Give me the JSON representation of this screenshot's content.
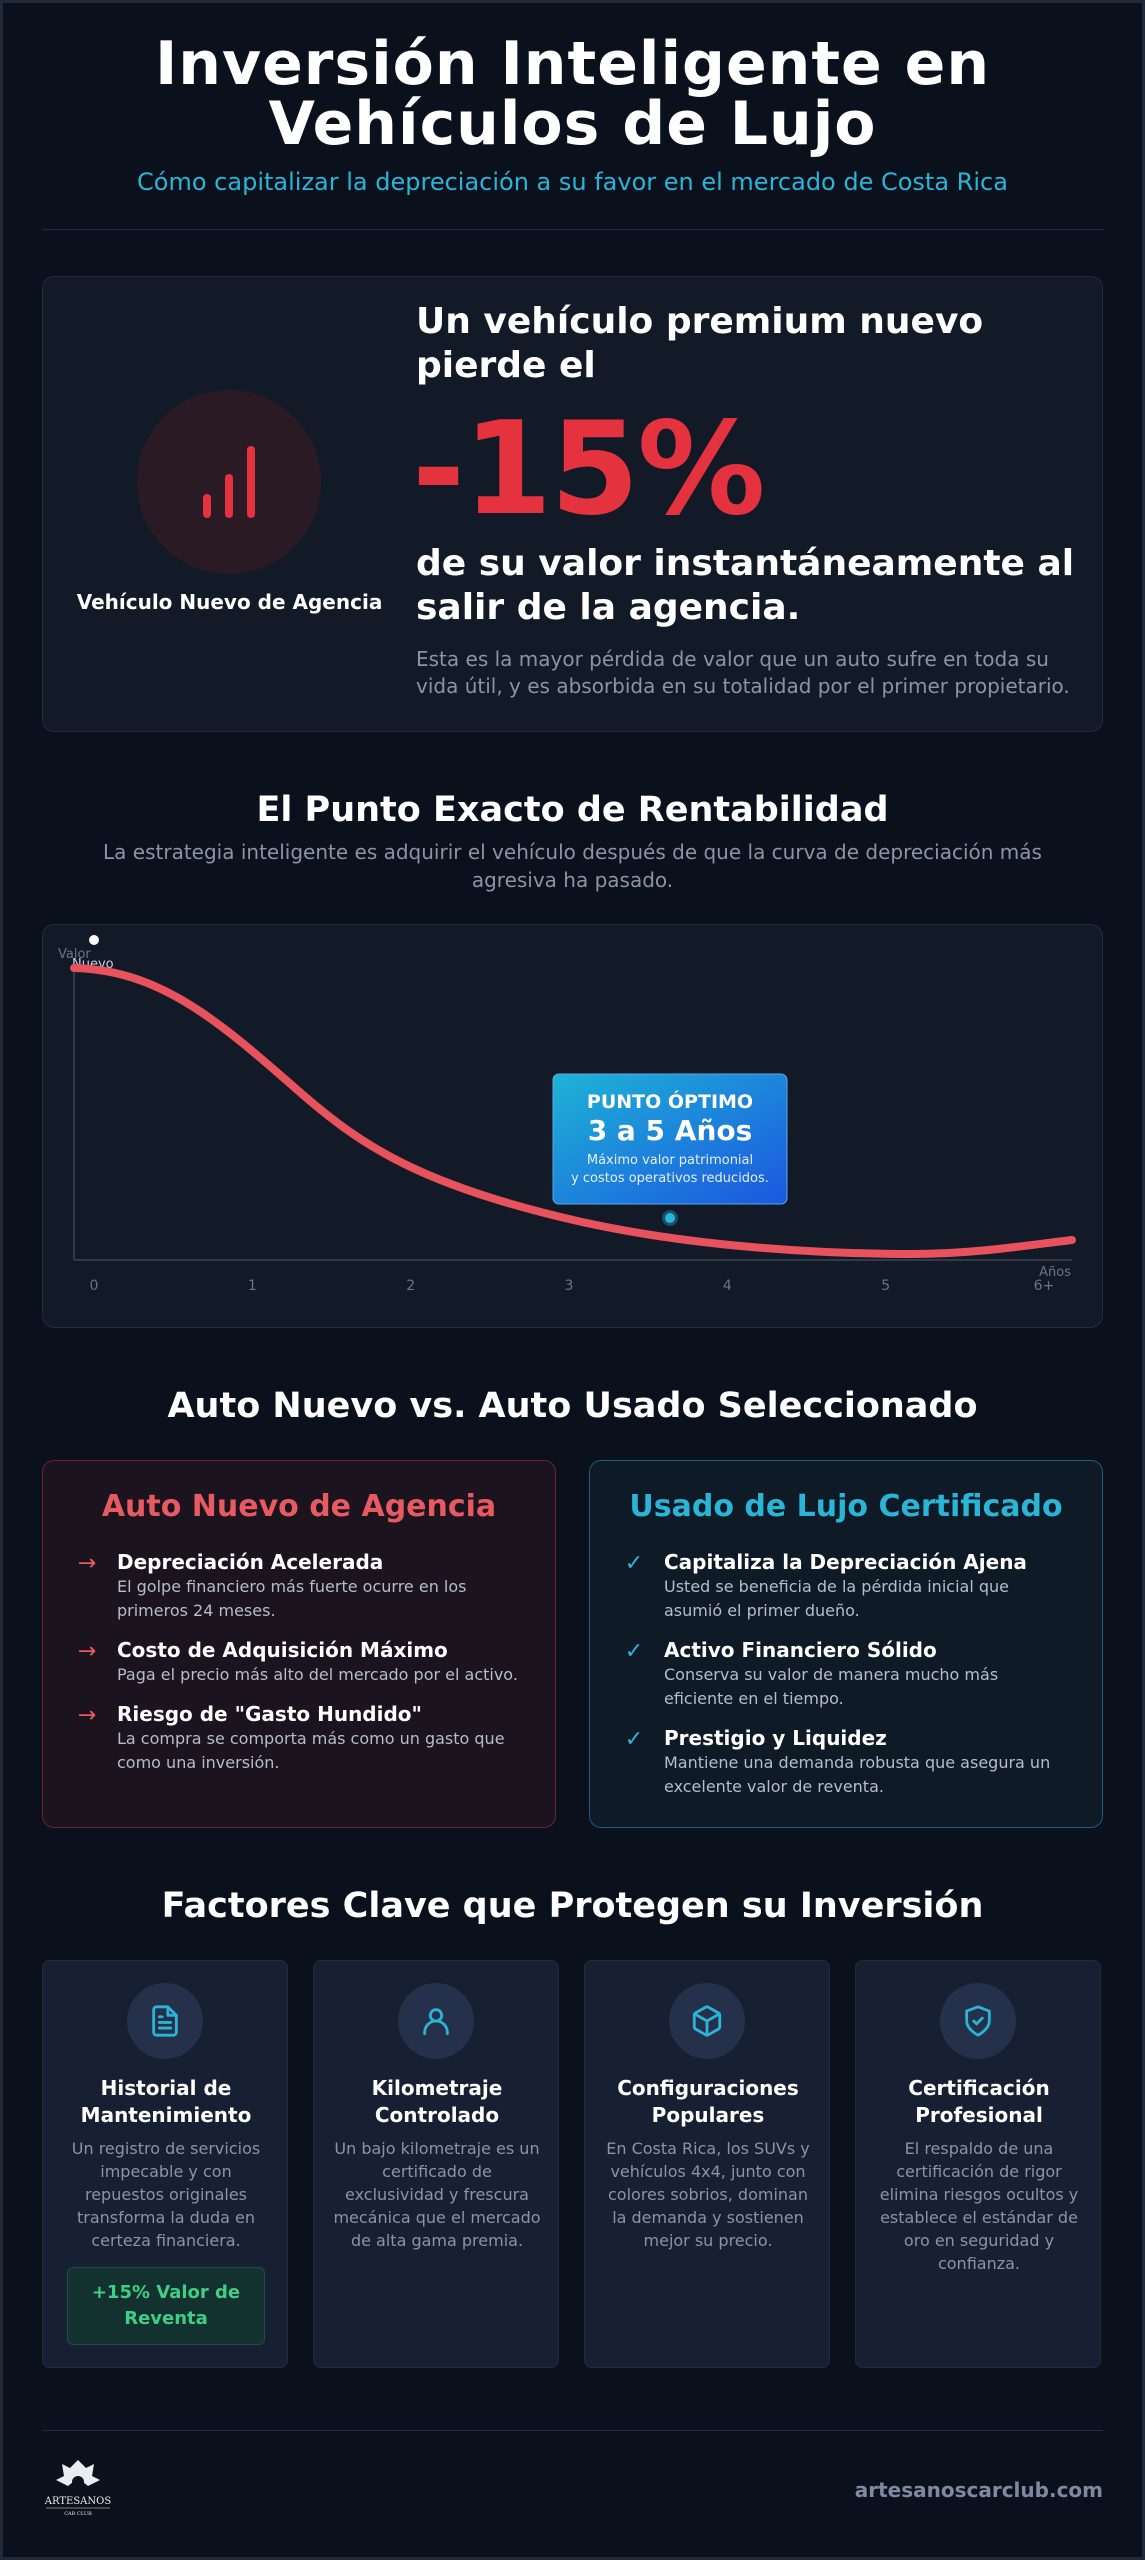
{
  "header": {
    "title_line1": "Inversión Inteligente en",
    "title_line2": "Vehículos de Lujo",
    "subtitle": "Cómo capitalizar la depreciación a su favor en el mercado de Costa Rica"
  },
  "depreciation": {
    "icon": "bar-chart-icon",
    "vehicle_label": "Vehículo Nuevo de Agencia",
    "lead": "Un vehículo premium nuevo pierde el",
    "big_value": "-15%",
    "tail": "de su valor instantáneamente al salir de la agencia.",
    "description": "Esta es la mayor pérdida de valor que un auto sufre en toda su vida útil, y es absorbida en su totalidad por el primer propietario."
  },
  "profit_point": {
    "title": "El Punto Exacto de Rentabilidad",
    "subtitle": "La estrategia inteligente es adquirir el vehículo después de que la curva de depreciación más agresiva ha pasado."
  },
  "chart_data": {
    "type": "line",
    "y_axis_label": "Valor",
    "x_axis_label": "Años",
    "x_ticks": [
      "0",
      "1",
      "2",
      "3",
      "4",
      "5",
      "6+"
    ],
    "curve_color": "#e8525c",
    "start_label": "Nuevo",
    "optimal_box": {
      "title": "PUNTO ÓPTIMO",
      "value": "3 a 5 Años",
      "line1": "Máximo valor patrimonial",
      "line2": "y costos operativos reducidos."
    }
  },
  "comparison": {
    "title": "Auto Nuevo vs. Auto Usado Seleccionado",
    "new": {
      "title": "Auto Nuevo de Agencia",
      "color": "#e85a62",
      "icon": "arrow-right-icon",
      "items": [
        {
          "heading": "Depreciación Acelerada",
          "text": "El golpe financiero más fuerte ocurre en los primeros 24 meses."
        },
        {
          "heading": "Costo de Adquisición Máximo",
          "text": "Paga el precio más alto del mercado por el activo."
        },
        {
          "heading": "Riesgo de \"Gasto Hundido\"",
          "text": "La compra se comporta más como un gasto que como una inversión."
        }
      ]
    },
    "used": {
      "title": "Usado de Lujo Certificado",
      "color": "#2ab4d6",
      "icon": "check-icon",
      "items": [
        {
          "heading": "Capitaliza la Depreciación Ajena",
          "text": "Usted se beneficia de la pérdida inicial que asumió el primer dueño."
        },
        {
          "heading": "Activo Financiero Sólido",
          "text": "Conserva su valor de manera mucho más eficiente en el tiempo."
        },
        {
          "heading": "Prestigio y Liquidez",
          "text": "Mantiene una demanda robusta que asegura un excelente valor de reventa."
        }
      ]
    }
  },
  "factors": {
    "title": "Factores Clave que Protegen su Inversión",
    "items": [
      {
        "icon": "document-icon",
        "title": "Historial de Mantenimiento",
        "text": "Un registro de servicios impecable y con repuestos originales transforma la duda en certeza financiera.",
        "badge": "+15% Valor de Reventa"
      },
      {
        "icon": "user-icon",
        "title": "Kilometraje Controlado",
        "text": "Un bajo kilometraje es un certificado de exclusividad y frescura mecánica que el mercado de alta gama premia."
      },
      {
        "icon": "cube-icon",
        "title": "Configuraciones Populares",
        "text": "En Costa Rica, los SUVs y vehículos 4x4, junto con colores sobrios, dominan la demanda y sostienen mejor su precio."
      },
      {
        "icon": "shield-check-icon",
        "title": "Certificación Profesional",
        "text": "El respaldo de una certificación de rigor elimina riesgos ocultos y establece el estándar de oro en seguridad y confianza."
      }
    ]
  },
  "footer": {
    "logo_text": "ARTESANOS",
    "logo_sub": "CAR CLUB",
    "website": "artesanoscarclub.com"
  }
}
